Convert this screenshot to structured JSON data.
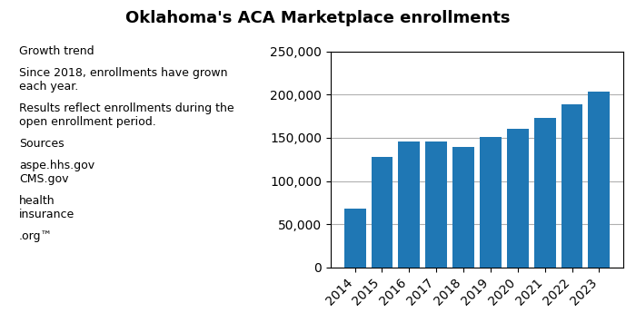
{
  "chart_data": {
    "type": "bar",
    "title": "Oklahoma's ACA Marketplace enrollments",
    "categories": [
      "2014",
      "2015",
      "2016",
      "2017",
      "2018",
      "2019",
      "2020",
      "2021",
      "2022",
      "2023"
    ],
    "values": [
      68000,
      128000,
      146000,
      146000,
      139000,
      151000,
      160000,
      173000,
      189000,
      204000
    ],
    "ylim": [
      0,
      250000
    ],
    "yticks": [
      0,
      {
        "value": 50000,
        "label": "50,000"
      },
      {
        "value": 100000,
        "label": "100,000"
      },
      {
        "value": 150000,
        "label": "150,000"
      },
      {
        "value": 200000,
        "label": "200,000"
      },
      {
        "value": 250000,
        "label": "250,000"
      }
    ],
    "grid": true,
    "annotations": [
      "Growth trend",
      "Since 2018, enrollments have grown\neach year.",
      "Results reflect enrollments during the\nopen enrollment period.",
      "Sources",
      "aspe.hhs.gov\nCMS.gov",
      "health\ninsurance",
      ".org™"
    ]
  }
}
